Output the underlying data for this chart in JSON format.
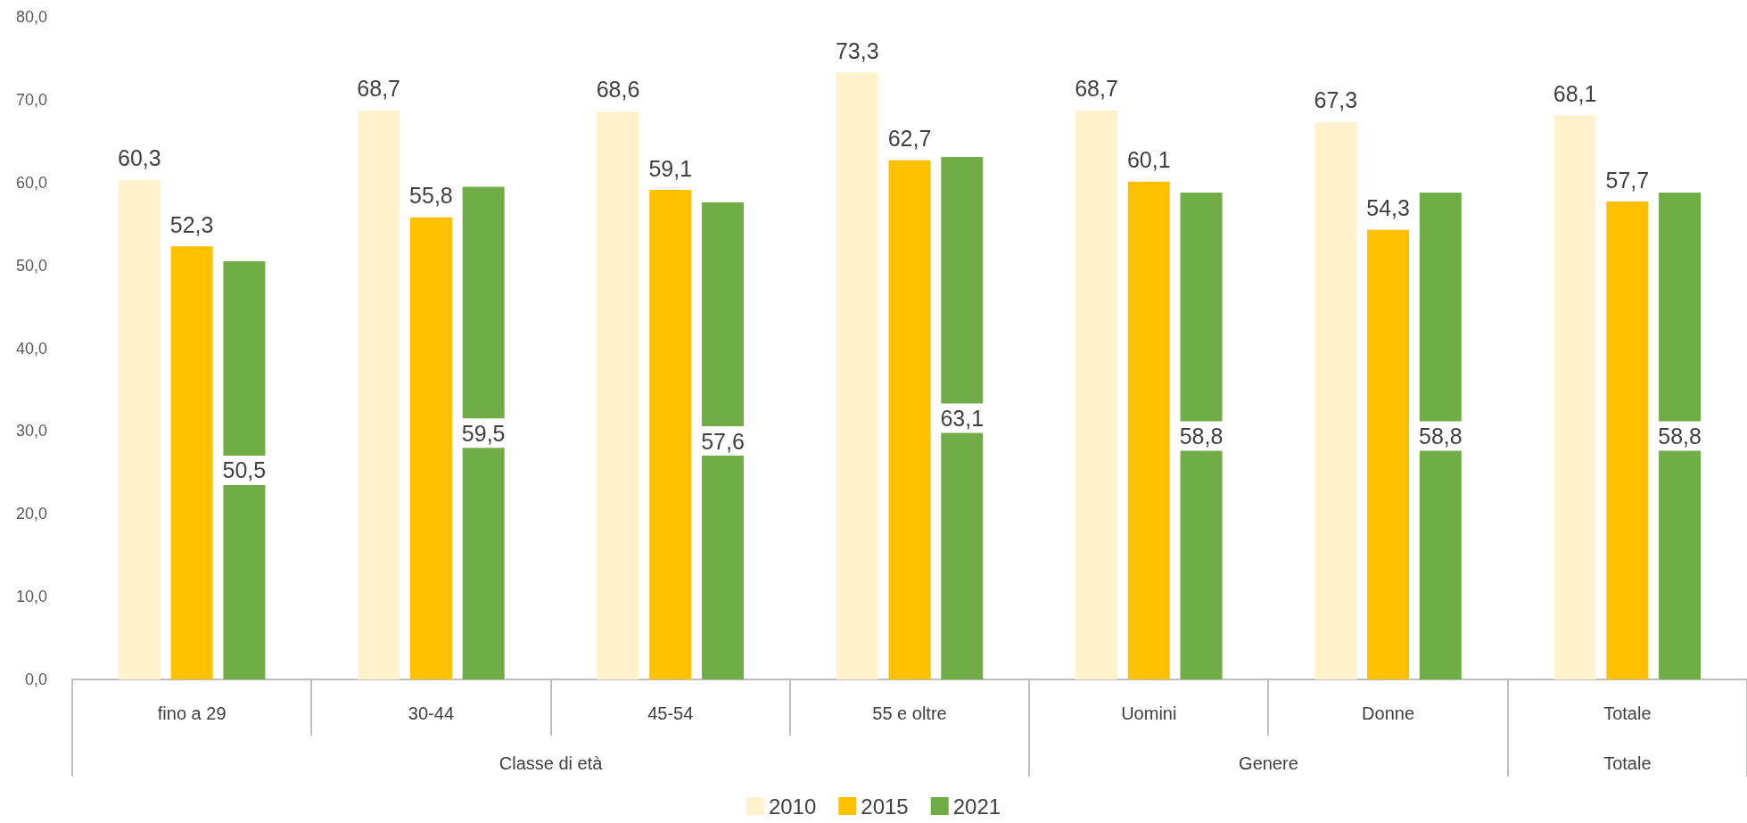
{
  "chart_data": {
    "type": "bar",
    "categories": [
      "fino a 29",
      "30-44",
      "45-54",
      "55 e oltre",
      "Uomini",
      "Donne",
      "Totale"
    ],
    "series": [
      {
        "name": "2010",
        "color": "#fff2cc",
        "values": [
          60.3,
          68.7,
          68.6,
          73.3,
          68.7,
          67.3,
          68.1
        ],
        "value_labels": [
          "60,3",
          "68,7",
          "68,6",
          "73,3",
          "68,7",
          "67,3",
          "68,1"
        ]
      },
      {
        "name": "2015",
        "color": "#ffc000",
        "values": [
          52.3,
          55.8,
          59.1,
          62.7,
          60.1,
          54.3,
          57.7
        ],
        "value_labels": [
          "52,3",
          "55,8",
          "59,1",
          "62,7",
          "60,1",
          "54,3",
          "57,7"
        ]
      },
      {
        "name": "2021",
        "color": "#70ad47",
        "values": [
          50.5,
          59.5,
          57.6,
          63.1,
          58.8,
          58.8,
          58.8
        ],
        "value_labels": [
          "50,5",
          "59,5",
          "57,6",
          "63,1",
          "58,8",
          "58,8",
          "58,8"
        ]
      }
    ],
    "annotations": [
      "Classe di età",
      "Genere",
      "Totale"
    ],
    "ylim": [
      0,
      80
    ],
    "yticks": [
      {
        "value": 0,
        "label": "0,0"
      },
      {
        "value": 10,
        "label": "10,0"
      },
      {
        "value": 20,
        "label": "20,0"
      },
      {
        "value": 30,
        "label": "30,0"
      },
      {
        "value": 40,
        "label": "40,0"
      },
      {
        "value": 50,
        "label": "50,0"
      },
      {
        "value": 60,
        "label": "60,0"
      },
      {
        "value": 70,
        "label": "70,0"
      },
      {
        "value": 80,
        "label": "80,0"
      }
    ],
    "grid": false,
    "legend": "bottom"
  }
}
